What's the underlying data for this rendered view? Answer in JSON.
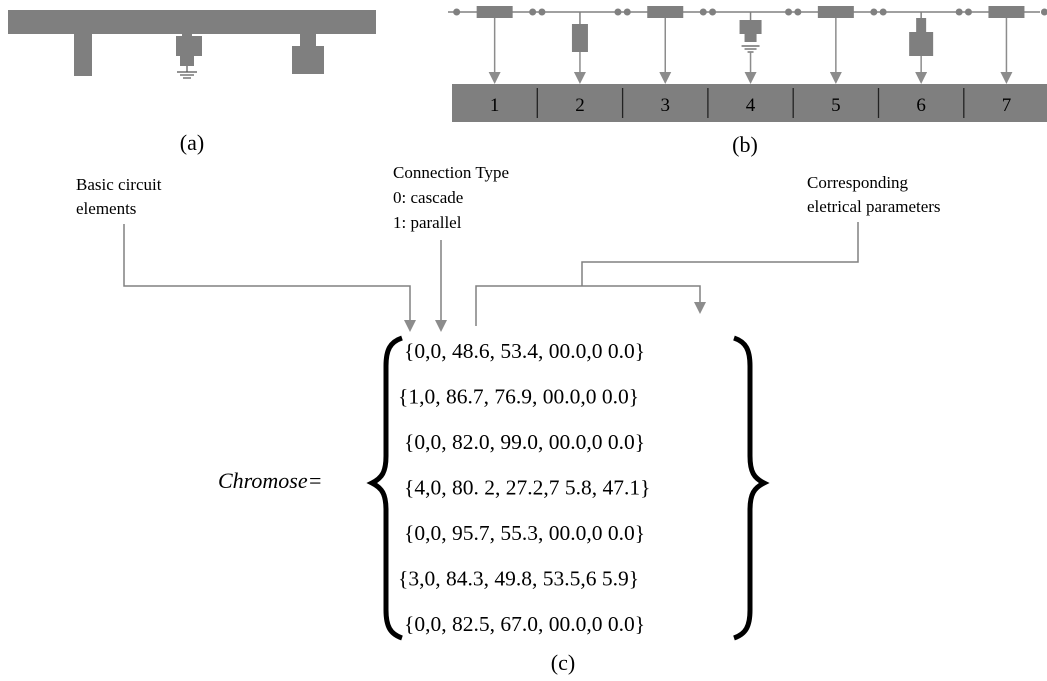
{
  "colors": {
    "element_fill": "#7f7f7f",
    "line": "#808080",
    "arrow": "#8c8c8c",
    "text": "#000000"
  },
  "panel_a": {
    "caption": "(a)"
  },
  "panel_b": {
    "caption": "(b)",
    "cells": [
      "1",
      "2",
      "3",
      "4",
      "5",
      "6",
      "7"
    ],
    "element_icons": [
      "series-resistor-icon",
      "shunt-stub-icon",
      "series-resistor-icon",
      "grounded-element-icon",
      "series-resistor-icon",
      "open-stub-icon",
      "series-resistor-icon"
    ]
  },
  "panel_c": {
    "caption": "(c)",
    "annotations": {
      "basic": [
        "Basic circuit",
        "elements"
      ],
      "connection": [
        "Connection Type",
        "0: cascade",
        "1: parallel"
      ],
      "params": [
        "Corresponding",
        "eletrical parameters"
      ]
    },
    "lhs": "Chromose=",
    "rows": [
      "{0,0, 48.6, 53.4, 00.0,0 0.0}",
      "{1,0, 86.7, 76.9, 00.0,0 0.0}",
      "{0,0, 82.0, 99.0, 00.0,0 0.0}",
      "{4,0, 80. 2, 27.2,7 5.8, 47.1}",
      "{0,0, 95.7, 55.3, 00.0,0 0.0}",
      "{3,0, 84.3, 49.8, 53.5,6 5.9}",
      "{0,0, 82.5, 67.0, 00.0,0 0.0}"
    ]
  }
}
